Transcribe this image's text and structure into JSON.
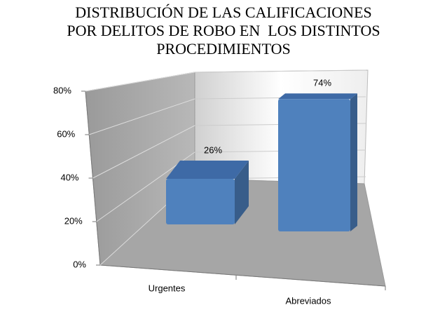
{
  "chart_data": {
    "type": "bar3d",
    "title": [
      "DISTRIBUCIÓN DE LAS CALIFICACIONES",
      "POR DELITOS DE ROBO EN  LOS DISTINTOS",
      "PROCEDIMIENTOS"
    ],
    "categories": [
      "Urgentes",
      "Abreviados"
    ],
    "values": [
      26,
      74
    ],
    "value_labels": [
      "26%",
      "74%"
    ],
    "color": "#4f81bd",
    "ylim": [
      0,
      80
    ],
    "yticks": [
      {
        "value": 0,
        "label": "0%"
      },
      {
        "value": 20,
        "label": "20%"
      },
      {
        "value": 40,
        "label": "40%"
      },
      {
        "value": 60,
        "label": "60%"
      },
      {
        "value": 80,
        "label": "80%"
      }
    ],
    "grid": true
  }
}
